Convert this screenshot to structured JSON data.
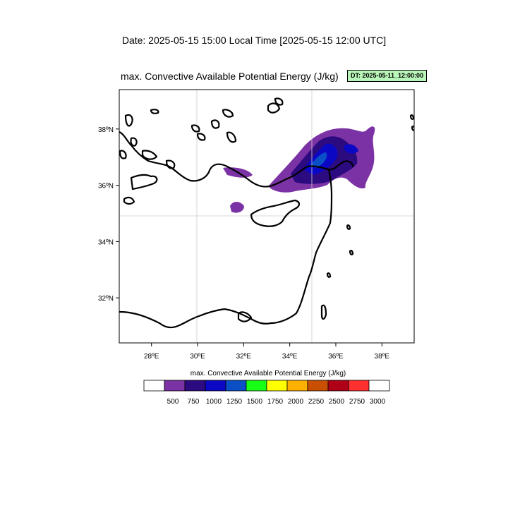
{
  "header": {
    "date_line": "Date: 2025-05-15  15:00 Local Time [2025-05-15  12:00 UTC]"
  },
  "map": {
    "title": "max. Convective Available Potential Energy   (J/kg)",
    "dt_badge": "DT: 2025-05-11_12:00:00",
    "lon_range": [
      26.6,
      39.4
    ],
    "lat_range": [
      30.4,
      39.4
    ],
    "lon_ticks": [
      "28ºE",
      "30ºE",
      "32ºE",
      "34ºE",
      "36ºE",
      "38ºE"
    ],
    "lat_ticks": [
      "32ºN",
      "34ºN",
      "36ºN",
      "38ºN"
    ],
    "gridlines": true
  },
  "colorbar": {
    "title": "max. Convective Available Potential Energy  (J/kg)",
    "labels": [
      "500",
      "750",
      "1000",
      "1250",
      "1500",
      "1750",
      "2000",
      "2250",
      "2500",
      "2750",
      "3000"
    ],
    "colors": [
      "#ffffff",
      "#7b32a4",
      "#2c0a80",
      "#0a08c4",
      "#0b4fc7",
      "#17ff17",
      "#ffff00",
      "#ffb000",
      "#c85000",
      "#b00018",
      "#ff3030",
      "#ffffff"
    ]
  }
}
